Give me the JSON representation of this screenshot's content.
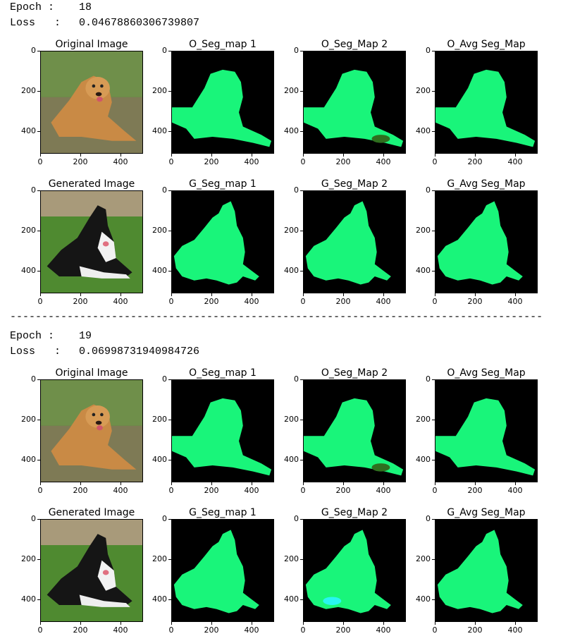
{
  "blocks": [
    {
      "epoch_label": "Epoch :",
      "epoch_value": "18",
      "loss_label": "Loss   :",
      "loss_value": "0.04678860306739807",
      "rows": [
        [
          "Original Image",
          "O_Seg_map 1",
          "O_Seg_Map 2",
          "O_Avg Seg_Map"
        ],
        [
          "Generated Image",
          "G_Seg_map 1",
          "G_Seg_Map 2",
          "G_Avg Seg_Map"
        ]
      ]
    },
    {
      "epoch_label": "Epoch :",
      "epoch_value": "19",
      "loss_label": "Loss   :",
      "loss_value": "0.06998731940984726",
      "rows": [
        [
          "Original Image",
          "O_Seg_map 1",
          "O_Seg_Map 2",
          "O_Avg Seg_Map"
        ],
        [
          "Generated Image",
          "G_Seg_map 1",
          "G_Seg_Map 2",
          "G_Avg Seg_Map"
        ]
      ]
    }
  ],
  "ticks": {
    "x": [
      "0",
      "200",
      "400"
    ],
    "y": [
      "0",
      "200",
      "400"
    ]
  },
  "divider": "------------------------------------------------------------------------------------",
  "colors": {
    "mask_green": "#19f57a",
    "mask_dark": "#2f6f1f",
    "mask_cyan": "#28f5f0",
    "background": "#000000"
  }
}
